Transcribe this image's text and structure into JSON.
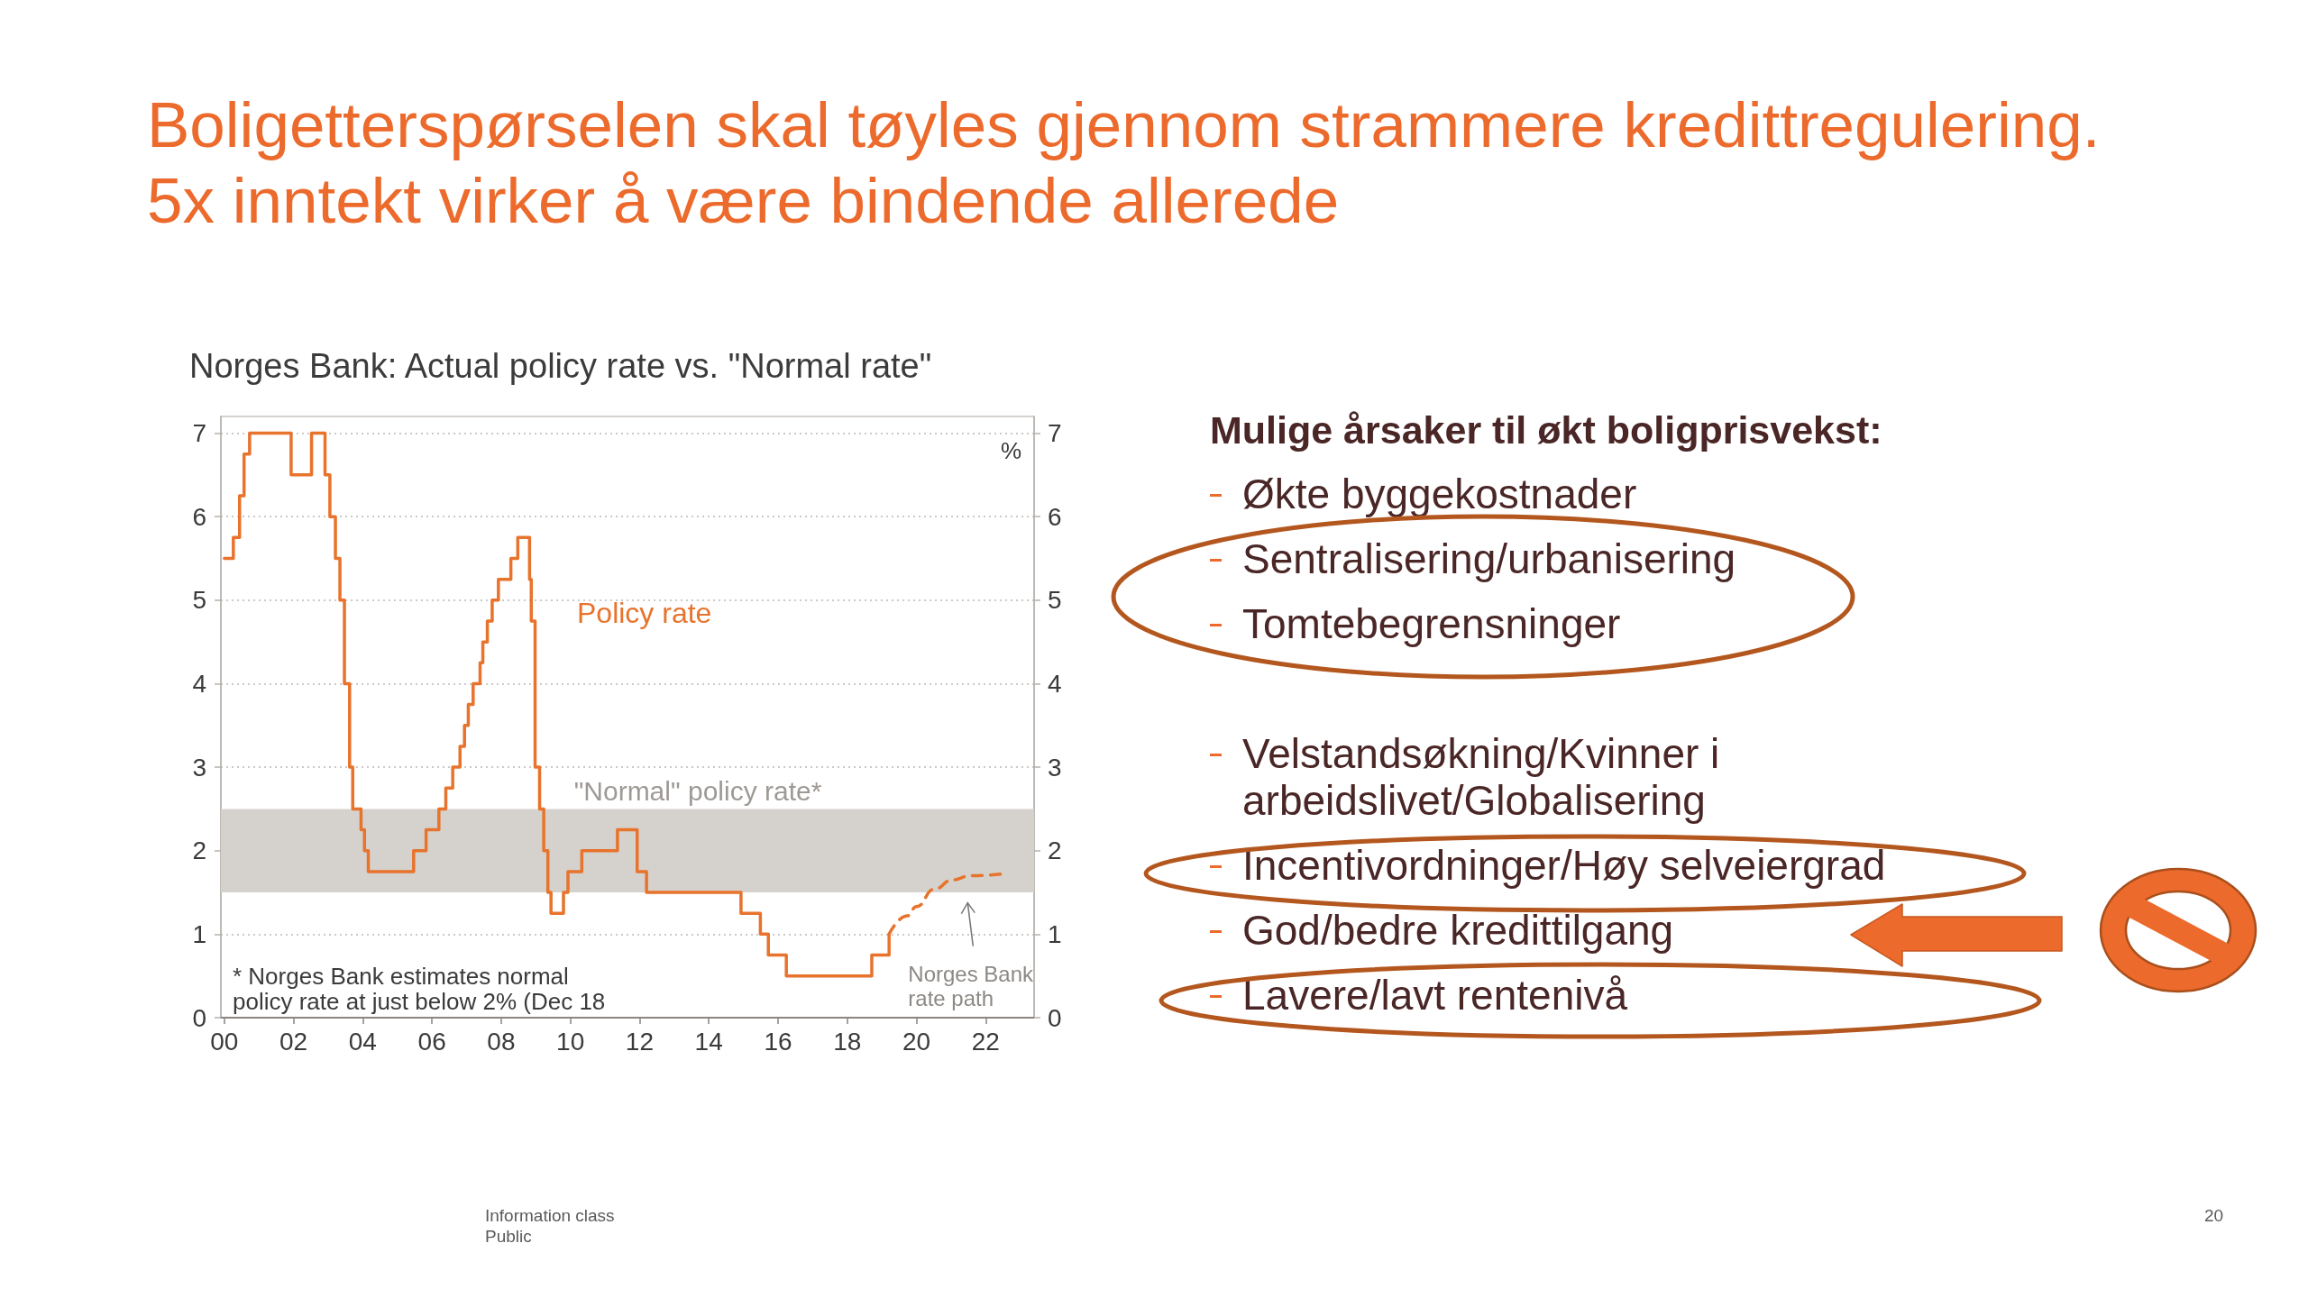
{
  "chart_data": [
    {
      "type": "line",
      "title": "Boligetterspørselen skal tøyles gjennom strammere kredittregulering.\n5x inntekt virker å være bindende allerede",
      "subtitle": "Norges Bank: Actual policy rate vs. \"Normal rate\"",
      "y2label": "%",
      "series": [
        {
          "name": "Policy rate",
          "type": "step",
          "color": "#e8732c",
          "line_style": "solid",
          "x": [
            2000.0,
            2000.26,
            2000.44,
            2000.57,
            2000.73,
            2001.93,
            2002.52,
            2002.91,
            2003.05,
            2003.21,
            2003.34,
            2003.47,
            2003.62,
            2003.71,
            2003.95,
            2004.05,
            2004.16,
            2005.47,
            2005.83,
            2006.2,
            2006.4,
            2006.6,
            2006.81,
            2006.94,
            2007.05,
            2007.19,
            2007.39,
            2007.47,
            2007.6,
            2007.74,
            2007.92,
            2008.28,
            2008.48,
            2008.82,
            2008.87,
            2008.98,
            2009.11,
            2009.23,
            2009.35,
            2009.44,
            2009.8,
            2009.93,
            2010.33,
            2011.36,
            2011.93,
            2012.2,
            2014.93,
            2015.49,
            2015.72,
            2016.24,
            2018.71,
            2019.21
          ],
          "values": [
            5.5,
            5.75,
            6.25,
            6.75,
            7.0,
            6.5,
            7.0,
            6.5,
            6.0,
            5.5,
            5.0,
            4.0,
            3.0,
            2.5,
            2.25,
            2.0,
            1.75,
            2.0,
            2.25,
            2.5,
            2.75,
            3.0,
            3.25,
            3.5,
            3.75,
            4.0,
            4.25,
            4.5,
            4.75,
            5.0,
            5.25,
            5.5,
            5.75,
            5.25,
            4.75,
            3.0,
            2.5,
            2.0,
            1.5,
            1.25,
            1.5,
            1.75,
            2.0,
            2.25,
            1.75,
            1.5,
            1.25,
            1.0,
            0.75,
            0.5,
            0.75,
            1.0
          ]
        },
        {
          "name": "Norges Bank rate path",
          "color": "#e8732c",
          "line_style": "dashed",
          "x": [
            2019.21,
            2019.74,
            2020.0,
            2020.52,
            2021.04,
            2021.56,
            2022.47
          ],
          "values": [
            1.0,
            1.22,
            1.33,
            1.54,
            1.65,
            1.7,
            1.72
          ]
        }
      ],
      "xlim": [
        1999.9,
        2023.4
      ],
      "xticks": [
        {
          "value": 2000,
          "label": "00"
        },
        {
          "value": 2002,
          "label": "02"
        },
        {
          "value": 2004,
          "label": "04"
        },
        {
          "value": 2006,
          "label": "06"
        },
        {
          "value": 2008,
          "label": "08"
        },
        {
          "value": 2010,
          "label": "10"
        },
        {
          "value": 2012,
          "label": "12"
        },
        {
          "value": 2014,
          "label": "14"
        },
        {
          "value": 2016,
          "label": "16"
        },
        {
          "value": 2018,
          "label": "18"
        },
        {
          "value": 2020,
          "label": "20"
        },
        {
          "value": 2022,
          "label": "22"
        }
      ],
      "ylim": [
        0,
        7.2
      ],
      "yticks": [
        0,
        1,
        2,
        3,
        4,
        5,
        6,
        7
      ],
      "y2lim": [
        0,
        7.2
      ],
      "y2ticks": [
        0,
        1,
        2,
        3,
        4,
        5,
        6,
        7
      ],
      "bands": [
        {
          "axis": "y",
          "from": 1.5,
          "to": 2.5,
          "label": "\"Normal\" policy rate*",
          "color": "#d5d2cd"
        }
      ],
      "grid": "y",
      "marker": "none",
      "annotations": [
        "* Norges Bank estimates normal\npolicy rate at just below 2% (Dec 18",
        "Information class\nPublic",
        "20"
      ]
    },
    {
      "type": "other",
      "title": "Mulige årsaker til økt boligprisvekst:",
      "annotations": [
        "Økte byggekostnader",
        "Sentralisering/urbanisering",
        "Tomtebegrensninger",
        "Velstandsøkning/Kvinner i\narbeidslivet/Globalisering",
        "Incentivordninger/Høy selveiergrad",
        "God/bedre kredittilgang",
        "Lavere/lavt rentenivå"
      ]
    }
  ]
}
